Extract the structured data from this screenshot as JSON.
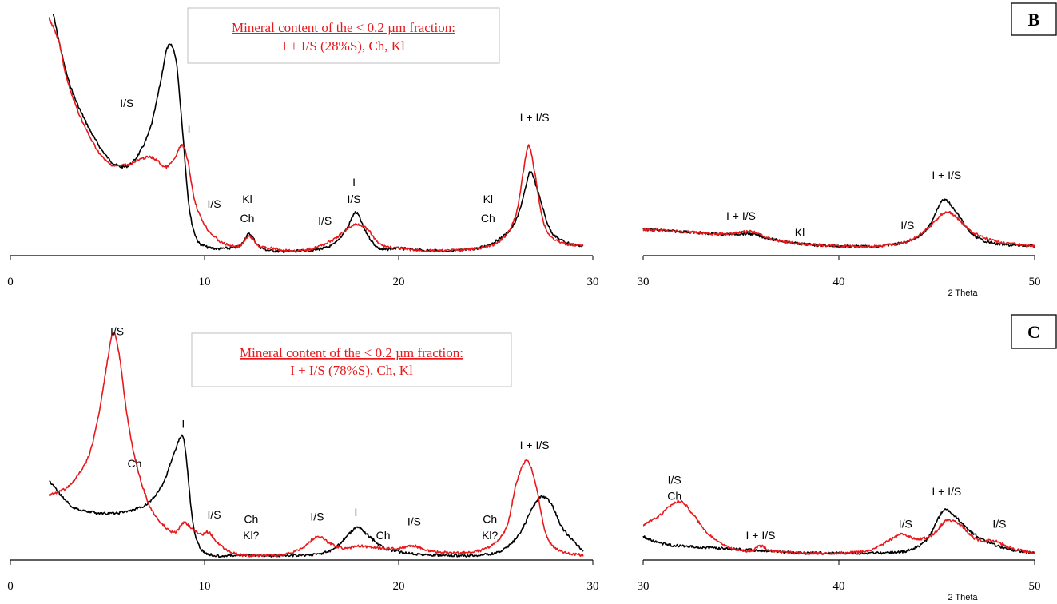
{
  "colors": {
    "red": "#e8191c",
    "black": "#000000"
  },
  "chart_data": [
    {
      "type": "line",
      "panel": "B",
      "left_x_ticks": [
        "0",
        "10",
        "20",
        "30"
      ],
      "right_x_ticks": [
        "30",
        "40",
        "50"
      ],
      "xlabel": "2 Theta",
      "xlim_left": [
        0,
        30
      ],
      "xlim_right": [
        30,
        50
      ],
      "box": {
        "line1": "Mineral content of the < 0.2 µm fraction:",
        "line2": "I + I/S (28%S), Ch, Kl"
      },
      "annotations": [
        {
          "text": "I/S",
          "x": 6.0,
          "y": 0.62
        },
        {
          "text": "I",
          "x": 9.2,
          "y": 0.51
        },
        {
          "text": "I/S",
          "x": 10.5,
          "y": 0.2
        },
        {
          "text": "Kl",
          "x": 12.2,
          "y": 0.22
        },
        {
          "text": "Ch",
          "x": 12.2,
          "y": 0.14
        },
        {
          "text": "I",
          "x": 17.7,
          "y": 0.29
        },
        {
          "text": "I/S",
          "x": 17.7,
          "y": 0.22
        },
        {
          "text": "I/S",
          "x": 16.2,
          "y": 0.13
        },
        {
          "text": "Kl",
          "x": 24.6,
          "y": 0.22
        },
        {
          "text": "Ch",
          "x": 24.6,
          "y": 0.14
        },
        {
          "text": "I + I/S",
          "x": 27.0,
          "y": 0.56
        },
        {
          "text": "I + I/S",
          "x": 35.0,
          "y": 0.15
        },
        {
          "text": "Kl",
          "x": 38.0,
          "y": 0.08
        },
        {
          "text": "I/S",
          "x": 43.5,
          "y": 0.11
        },
        {
          "text": "I + I/S",
          "x": 45.5,
          "y": 0.32
        }
      ],
      "series": [
        {
          "color": "#000000",
          "left": {
            "x": [
              2.2,
              3,
              4,
              5,
              5.8,
              6.5,
              7.2,
              7.7,
              8.1,
              8.5,
              8.8,
              9.2,
              9.6,
              10,
              10.5,
              11,
              11.8,
              12.3,
              12.8,
              13.5,
              15,
              16.5,
              17.3,
              17.8,
              18.3,
              19,
              20,
              22,
              24,
              25.2,
              26,
              26.5,
              26.8,
              27.2,
              27.8,
              28.5,
              29.5
            ],
            "y": [
              1.0,
              0.72,
              0.53,
              0.4,
              0.36,
              0.4,
              0.52,
              0.7,
              0.86,
              0.82,
              0.58,
              0.2,
              0.06,
              0.03,
              0.02,
              0.02,
              0.03,
              0.08,
              0.03,
              0.01,
              0.01,
              0.03,
              0.1,
              0.17,
              0.09,
              0.02,
              0.02,
              0.01,
              0.02,
              0.06,
              0.13,
              0.26,
              0.34,
              0.25,
              0.1,
              0.05,
              0.03
            ]
          },
          "right": {
            "x": [
              30,
              32,
              34,
              35.5,
              36.5,
              38,
              40,
              42,
              43.5,
              44.5,
              45.3,
              46,
              46.8,
              48,
              50
            ],
            "y": [
              0.1,
              0.09,
              0.08,
              0.08,
              0.06,
              0.04,
              0.03,
              0.03,
              0.05,
              0.1,
              0.22,
              0.17,
              0.08,
              0.04,
              0.03
            ]
          }
        },
        {
          "color": "#e8191c",
          "left": {
            "x": [
              2.0,
              2.5,
              3,
              4,
              5,
              6,
              7,
              7.5,
              8,
              8.5,
              8.8,
              9.1,
              9.5,
              10,
              10.5,
              11,
              11.8,
              12.3,
              12.8,
              13.5,
              15,
              16.5,
              17.5,
              18,
              18.5,
              19,
              20,
              22,
              24,
              25.2,
              26,
              26.4,
              26.7,
              27,
              27.5,
              28.2,
              29.5
            ],
            "y": [
              0.98,
              0.88,
              0.7,
              0.5,
              0.38,
              0.37,
              0.4,
              0.39,
              0.36,
              0.4,
              0.45,
              0.4,
              0.22,
              0.12,
              0.07,
              0.04,
              0.03,
              0.07,
              0.03,
              0.02,
              0.01,
              0.05,
              0.11,
              0.12,
              0.09,
              0.04,
              0.02,
              0.01,
              0.02,
              0.05,
              0.15,
              0.33,
              0.45,
              0.34,
              0.12,
              0.05,
              0.03
            ]
          },
          "right": {
            "x": [
              30,
              32,
              34,
              35.5,
              36.5,
              38,
              40,
              42,
              43.5,
              44.5,
              45.4,
              46,
              46.8,
              48,
              50
            ],
            "y": [
              0.1,
              0.09,
              0.08,
              0.09,
              0.06,
              0.04,
              0.03,
              0.03,
              0.05,
              0.1,
              0.17,
              0.15,
              0.09,
              0.05,
              0.03
            ]
          }
        }
      ]
    },
    {
      "type": "line",
      "panel": "C",
      "left_x_ticks": [
        "0",
        "10",
        "20",
        "30"
      ],
      "right_x_ticks": [
        "30",
        "40",
        "50"
      ],
      "xlabel": "2 Theta",
      "xlim_left": [
        0,
        30
      ],
      "xlim_right": [
        30,
        50
      ],
      "box": {
        "line1": "Mineral content of the < 0.2 µm fraction:",
        "line2": "I + I/S (78%S), Ch, Kl"
      },
      "annotations": [
        {
          "text": "I/S",
          "x": 5.5,
          "y": 0.97
        },
        {
          "text": "Ch",
          "x": 6.4,
          "y": 0.4
        },
        {
          "text": "I",
          "x": 8.9,
          "y": 0.57
        },
        {
          "text": "I/S",
          "x": 10.5,
          "y": 0.18
        },
        {
          "text": "Ch",
          "x": 12.4,
          "y": 0.16
        },
        {
          "text": "Kl?",
          "x": 12.4,
          "y": 0.09
        },
        {
          "text": "I/S",
          "x": 15.8,
          "y": 0.17
        },
        {
          "text": "I",
          "x": 17.8,
          "y": 0.19
        },
        {
          "text": "Ch",
          "x": 19.2,
          "y": 0.09
        },
        {
          "text": "I/S",
          "x": 20.8,
          "y": 0.15
        },
        {
          "text": "Ch",
          "x": 24.7,
          "y": 0.16
        },
        {
          "text": "Kl?",
          "x": 24.7,
          "y": 0.09
        },
        {
          "text": "I + I/S",
          "x": 27.0,
          "y": 0.48
        },
        {
          "text": "I/S",
          "x": 31.6,
          "y": 0.33
        },
        {
          "text": "Ch",
          "x": 31.6,
          "y": 0.26
        },
        {
          "text": "I  + I/S",
          "x": 36.0,
          "y": 0.09
        },
        {
          "text": "I/S",
          "x": 43.4,
          "y": 0.14
        },
        {
          "text": "I + I/S",
          "x": 45.5,
          "y": 0.28
        },
        {
          "text": "I/S",
          "x": 48.2,
          "y": 0.14
        }
      ],
      "series": [
        {
          "color": "#000000",
          "left": {
            "x": [
              2.0,
              2.5,
              3.2,
              4,
              5,
              6,
              7,
              7.8,
              8.3,
              8.7,
              8.9,
              9.1,
              9.4,
              9.8,
              10.5,
              12,
              15,
              16.5,
              17.3,
              17.9,
              18.5,
              19.3,
              20.5,
              22,
              24,
              25.3,
              26.2,
              26.8,
              27.3,
              27.8,
              28.5,
              29.5
            ],
            "y": [
              0.33,
              0.28,
              0.22,
              0.2,
              0.19,
              0.2,
              0.23,
              0.31,
              0.42,
              0.51,
              0.52,
              0.4,
              0.15,
              0.04,
              0.01,
              0.01,
              0.01,
              0.03,
              0.09,
              0.13,
              0.09,
              0.04,
              0.02,
              0.01,
              0.01,
              0.03,
              0.1,
              0.2,
              0.26,
              0.24,
              0.12,
              0.03
            ]
          },
          "right": {
            "x": [
              30,
              31,
              32,
              34,
              36,
              38,
              40,
              42,
              43.5,
              44.5,
              45.3,
              45.8,
              46.5,
              47.3,
              48.5,
              50
            ],
            "y": [
              0.09,
              0.06,
              0.05,
              0.04,
              0.03,
              0.02,
              0.02,
              0.02,
              0.03,
              0.08,
              0.2,
              0.19,
              0.13,
              0.08,
              0.04,
              0.02
            ]
          }
        },
        {
          "color": "#e8191c",
          "left": {
            "x": [
              2.0,
              3,
              4,
              4.6,
              5.0,
              5.3,
              5.6,
              6.0,
              6.5,
              7.2,
              8,
              8.5,
              8.9,
              9.3,
              9.8,
              10.2,
              10.6,
              11.2,
              12,
              13,
              14,
              15,
              15.8,
              16.5,
              17.2,
              18,
              19,
              20,
              20.8,
              21.5,
              23,
              24.5,
              25.5,
              26,
              26.4,
              26.7,
              27.1,
              27.6,
              28.3,
              29.5
            ],
            "y": [
              0.27,
              0.31,
              0.43,
              0.64,
              0.85,
              0.97,
              0.88,
              0.62,
              0.4,
              0.22,
              0.13,
              0.11,
              0.15,
              0.13,
              0.1,
              0.11,
              0.07,
              0.03,
              0.01,
              0.01,
              0.01,
              0.04,
              0.09,
              0.06,
              0.04,
              0.05,
              0.04,
              0.04,
              0.05,
              0.03,
              0.02,
              0.04,
              0.12,
              0.3,
              0.4,
              0.41,
              0.3,
              0.1,
              0.03,
              0.01
            ]
          },
          "right": {
            "x": [
              30,
              30.8,
              31.5,
              32,
              32.6,
              33.5,
              34.5,
              35.5,
              36.0,
              36.6,
              38,
              40,
              41.5,
              42.5,
              43.2,
              44,
              44.8,
              45.5,
              46.2,
              47,
              48,
              48.8,
              50
            ],
            "y": [
              0.14,
              0.18,
              0.23,
              0.24,
              0.18,
              0.09,
              0.04,
              0.03,
              0.05,
              0.03,
              0.02,
              0.02,
              0.03,
              0.07,
              0.1,
              0.08,
              0.1,
              0.16,
              0.14,
              0.08,
              0.07,
              0.04,
              0.02
            ]
          }
        }
      ]
    }
  ]
}
